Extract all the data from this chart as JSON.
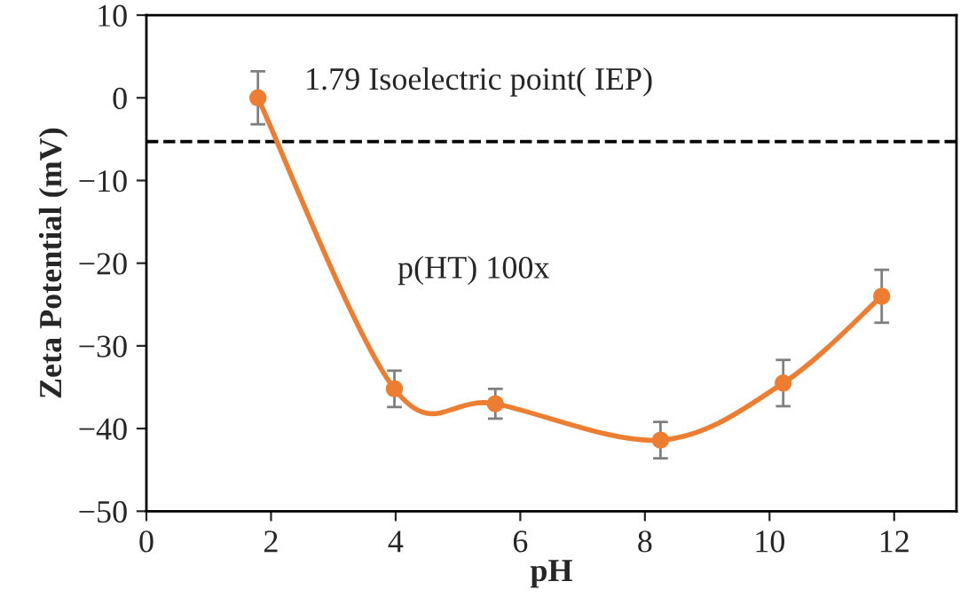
{
  "chart_data": {
    "type": "line",
    "xlabel": "pH",
    "ylabel": "Zeta Potential (mV)",
    "x": [
      1.79,
      3.98,
      5.6,
      8.25,
      10.22,
      11.8
    ],
    "series": [
      {
        "color": "#ed7d31",
        "values": [
          0,
          -35.2,
          -37,
          -41.4,
          -34.5,
          -24
        ],
        "errors": [
          3.2,
          2.2,
          1.8,
          2.2,
          2.8,
          3.2
        ]
      }
    ],
    "marker": "circle",
    "line_style": "solid",
    "xlim": [
      0,
      13
    ],
    "xticks": [
      0,
      2,
      4,
      6,
      8,
      10,
      12
    ],
    "ylim": [
      -50,
      10
    ],
    "yticks": [
      -50,
      -40,
      -30,
      -20,
      -10,
      0,
      10
    ],
    "ref_lines": [
      {
        "axis": "y",
        "value": -5.3,
        "color": "#000000",
        "line_style": "dashed"
      }
    ],
    "annotations": [
      "1.79 Isoelectric point( IEP)",
      "p(HT) 100x"
    ],
    "grid": false,
    "legend": false
  }
}
